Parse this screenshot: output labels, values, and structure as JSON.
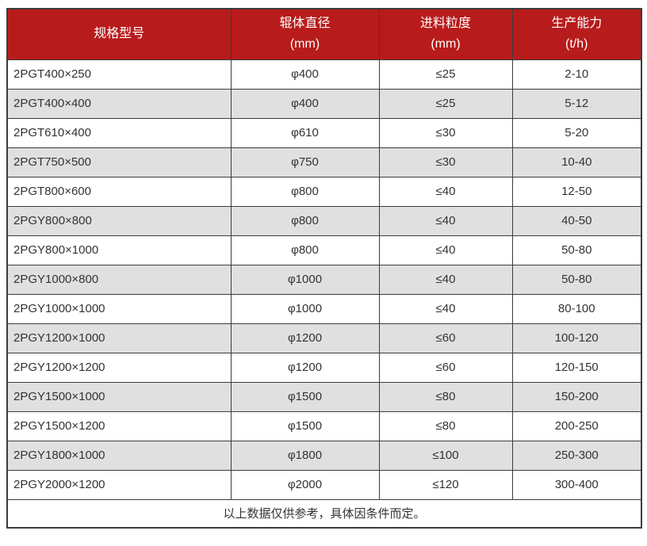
{
  "colors": {
    "header_bg": "#b81b1b",
    "header_text": "#ffffff",
    "row_alt_bg": "#e0e0e0",
    "row_bg": "#ffffff",
    "border": "#3c3c3c",
    "text": "#333333"
  },
  "table": {
    "columns": [
      {
        "label_line1": "规格型号",
        "label_line2": ""
      },
      {
        "label_line1": "辊体直径",
        "label_line2": "(mm)"
      },
      {
        "label_line1": "进料粒度",
        "label_line2": "(mm)"
      },
      {
        "label_line1": "生产能力",
        "label_line2": "(t/h)"
      }
    ],
    "rows": [
      [
        "2PGT400×250",
        "φ400",
        "≤25",
        "2-10"
      ],
      [
        "2PGT400×400",
        "φ400",
        "≤25",
        "5-12"
      ],
      [
        "2PGT610×400",
        "φ610",
        "≤30",
        "5-20"
      ],
      [
        "2PGT750×500",
        "φ750",
        "≤30",
        "10-40"
      ],
      [
        "2PGT800×600",
        "φ800",
        "≤40",
        "12-50"
      ],
      [
        "2PGY800×800",
        "φ800",
        "≤40",
        "40-50"
      ],
      [
        "2PGY800×1000",
        "φ800",
        "≤40",
        "50-80"
      ],
      [
        "2PGY1000×800",
        "φ1000",
        "≤40",
        "50-80"
      ],
      [
        "2PGY1000×1000",
        "φ1000",
        "≤40",
        "80-100"
      ],
      [
        "2PGY1200×1000",
        "φ1200",
        "≤60",
        "100-120"
      ],
      [
        "2PGY1200×1200",
        "φ1200",
        "≤60",
        "120-150"
      ],
      [
        "2PGY1500×1000",
        "φ1500",
        "≤80",
        "150-200"
      ],
      [
        "2PGY1500×1200",
        "φ1500",
        "≤80",
        "200-250"
      ],
      [
        "2PGY1800×1000",
        "φ1800",
        "≤100",
        "250-300"
      ],
      [
        "2PGY2000×1200",
        "φ2000",
        "≤120",
        "300-400"
      ]
    ],
    "footnote": "以上数据仅供参考，具体因条件而定。"
  }
}
